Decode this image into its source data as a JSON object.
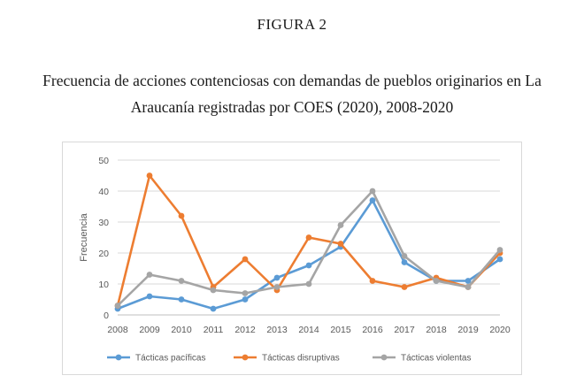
{
  "figure_label": "FIGURA 2",
  "figure_title": "Frecuencia de acciones contenciosas con demandas de pueblos originarios en La Araucanía registradas por COES (2020), 2008-2020",
  "chart_data": {
    "type": "line",
    "x": [
      "2008",
      "2009",
      "2010",
      "2011",
      "2012",
      "2013",
      "2014",
      "2015",
      "2016",
      "2017",
      "2018",
      "2019",
      "2020"
    ],
    "ylabel": "Frecuencia",
    "xlabel": "",
    "ylim": [
      0,
      50
    ],
    "yticks": [
      0,
      10,
      20,
      30,
      40,
      50
    ],
    "grid": "horizontal",
    "legend_position": "bottom",
    "series": [
      {
        "name": "Tácticas pacíficas",
        "color": "#5b9bd5",
        "values": [
          2,
          6,
          5,
          2,
          5,
          12,
          16,
          22,
          37,
          17,
          11,
          11,
          18
        ]
      },
      {
        "name": "Tácticas disruptivas",
        "color": "#ed7d31",
        "values": [
          3,
          45,
          32,
          9,
          18,
          8,
          25,
          23,
          11,
          9,
          12,
          9,
          20
        ]
      },
      {
        "name": "Tácticas violentas",
        "color": "#a5a5a5",
        "values": [
          3,
          13,
          11,
          8,
          7,
          9,
          10,
          29,
          40,
          19,
          11,
          9,
          21
        ]
      }
    ]
  }
}
